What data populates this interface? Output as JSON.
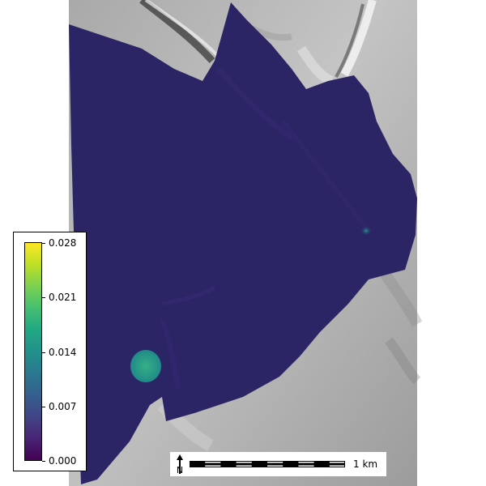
{
  "legend": {
    "tick_labels": [
      "0.028",
      "0.021",
      "0.014",
      "0.007",
      "0.000"
    ],
    "range": [
      0.0,
      0.028
    ],
    "colormap": "viridis"
  },
  "scalebar": {
    "label": "1 km",
    "north_label": "N"
  },
  "colors": {
    "hillshade_light": "#bdbdbd",
    "hillshade_dark": "#5a5a5a",
    "overlay_low": "#2b2566",
    "overlay_high_spot": "#2a9d82"
  }
}
